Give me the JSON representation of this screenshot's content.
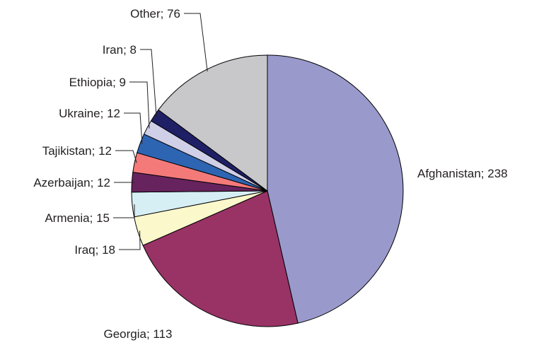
{
  "chart_data": {
    "type": "pie",
    "title": "",
    "start_angle_deg": 0,
    "direction": "clockwise",
    "slices": [
      {
        "label": "Afghanistan; 238",
        "name": "Afghanistan",
        "value": 238,
        "color": "#9999cc"
      },
      {
        "label": "Georgia; 113",
        "name": "Georgia",
        "value": 113,
        "color": "#993366"
      },
      {
        "label": "Iraq; 18",
        "name": "Iraq",
        "value": 18,
        "color": "#fbf8cc"
      },
      {
        "label": "Armenia; 15",
        "name": "Armenia",
        "value": 15,
        "color": "#d6eff4"
      },
      {
        "label": "Azerbaijan; 12",
        "name": "Azerbaijan",
        "value": 12,
        "color": "#66235e"
      },
      {
        "label": "Tajikistan; 12",
        "name": "Tajikistan",
        "value": 12,
        "color": "#f47a7a"
      },
      {
        "label": "Ukraine; 12",
        "name": "Ukraine",
        "value": 12,
        "color": "#2d65b3"
      },
      {
        "label": "Ethiopia; 9",
        "name": "Ethiopia",
        "value": 9,
        "color": "#cfcfe8"
      },
      {
        "label": "Iran; 8",
        "name": "Iran",
        "value": 8,
        "color": "#1f1f66"
      },
      {
        "label": "Other; 76",
        "name": "Other",
        "value": 76,
        "color": "#c8c8ca"
      }
    ]
  }
}
